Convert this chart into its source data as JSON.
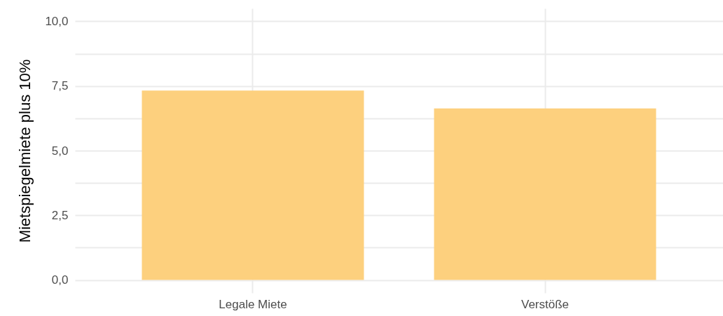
{
  "chart_data": {
    "type": "bar",
    "ylabel": "Mietspiegelmiete plus 10%",
    "categories": [
      "Legale Miete",
      "Verstöße"
    ],
    "values": [
      7.32,
      6.63
    ],
    "color": "#fdd07e",
    "ylim": [
      -0.5,
      10.5
    ],
    "yticks": [
      {
        "value": 0,
        "label": "0,0"
      },
      {
        "value": 1.25,
        "label": null
      },
      {
        "value": 2.5,
        "label": "2,5"
      },
      {
        "value": 3.75,
        "label": null
      },
      {
        "value": 5,
        "label": "5,0"
      },
      {
        "value": 6.25,
        "label": null
      },
      {
        "value": 7.5,
        "label": "7,5"
      },
      {
        "value": 8.75,
        "label": null
      },
      {
        "value": 10,
        "label": "10,0"
      }
    ],
    "grid": true
  }
}
